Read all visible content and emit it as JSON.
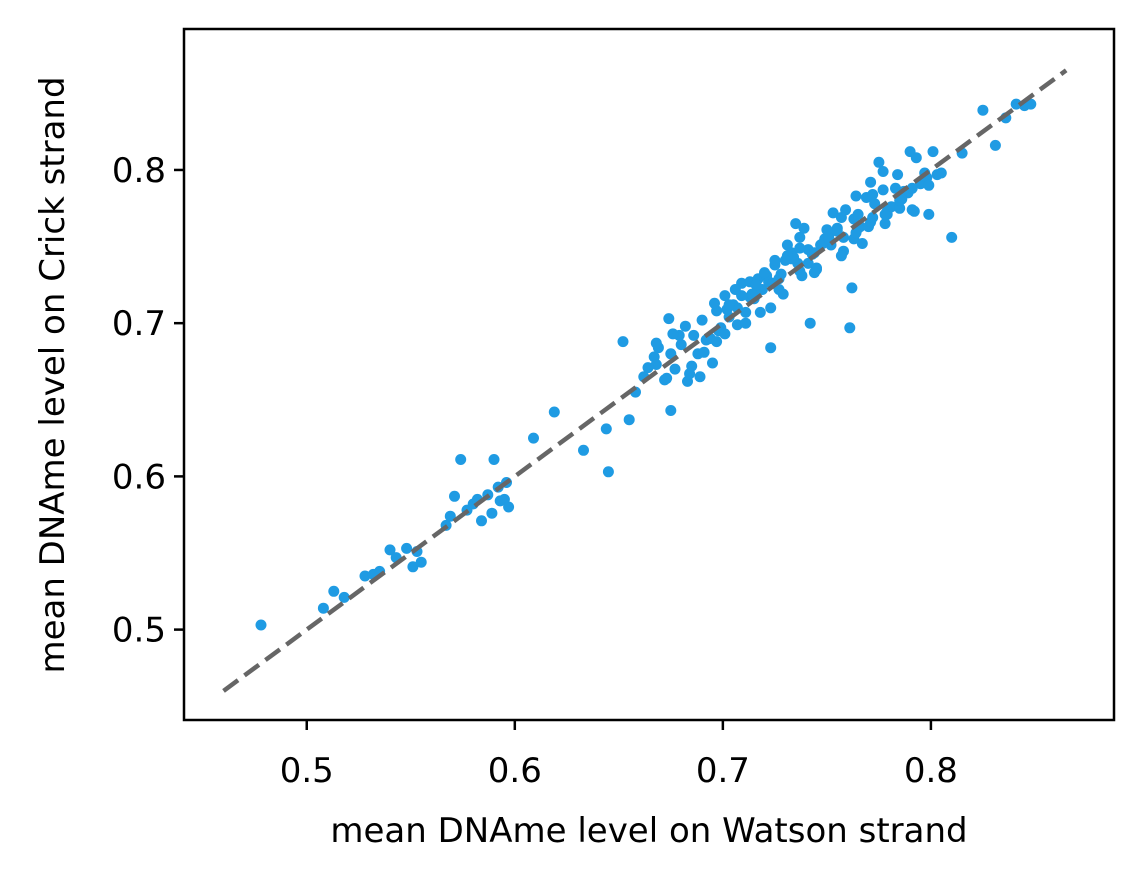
{
  "chart_data": {
    "type": "scatter",
    "title": "",
    "xlabel": "mean DNAme level on Watson strand",
    "ylabel": "mean DNAme level on Crick strand",
    "xlim": [
      0.441,
      0.888
    ],
    "ylim": [
      0.441,
      0.892
    ],
    "xticks": [
      0.5,
      0.6,
      0.7,
      0.8
    ],
    "yticks": [
      0.5,
      0.6,
      0.7,
      0.8
    ],
    "xtick_labels": [
      "0.5",
      "0.6",
      "0.7",
      "0.8"
    ],
    "ytick_labels": [
      "0.5",
      "0.6",
      "0.7",
      "0.8"
    ],
    "grid": false,
    "colors": {
      "points": "#1f9be3",
      "reference_line": "#666666"
    },
    "reference_line": {
      "style": "dashed",
      "x": [
        0.46,
        0.865
      ],
      "y": [
        0.46,
        0.865
      ]
    },
    "series": [
      {
        "x": [
          0.478,
          0.508,
          0.513,
          0.518,
          0.528,
          0.532,
          0.535,
          0.54,
          0.543,
          0.548,
          0.551,
          0.553,
          0.555,
          0.567,
          0.569,
          0.571,
          0.574,
          0.577,
          0.58,
          0.582,
          0.584,
          0.587,
          0.589,
          0.59,
          0.592,
          0.593,
          0.595,
          0.597,
          0.596,
          0.609,
          0.619,
          0.633,
          0.644,
          0.645,
          0.652,
          0.655,
          0.658,
          0.662,
          0.667,
          0.669,
          0.672,
          0.675,
          0.677,
          0.68,
          0.683,
          0.686,
          0.689,
          0.692,
          0.695,
          0.697,
          0.699,
          0.701,
          0.703,
          0.705,
          0.707,
          0.709,
          0.711,
          0.713,
          0.715,
          0.717,
          0.719,
          0.721,
          0.723,
          0.725,
          0.727,
          0.729,
          0.731,
          0.733,
          0.735,
          0.737,
          0.739,
          0.741,
          0.743,
          0.745,
          0.747,
          0.749,
          0.751,
          0.753,
          0.755,
          0.757,
          0.759,
          0.761,
          0.763,
          0.765,
          0.767,
          0.769,
          0.771,
          0.773,
          0.775,
          0.777,
          0.779,
          0.781,
          0.783,
          0.785,
          0.787,
          0.789,
          0.791,
          0.793,
          0.795,
          0.797,
          0.799,
          0.801,
          0.803,
          0.81,
          0.815,
          0.825,
          0.831,
          0.836,
          0.841,
          0.845,
          0.848,
          0.764,
          0.762,
          0.742,
          0.737,
          0.733,
          0.725,
          0.716,
          0.707,
          0.674,
          0.675,
          0.668,
          0.685,
          0.673,
          0.679,
          0.688,
          0.694,
          0.702,
          0.713,
          0.722,
          0.728,
          0.736,
          0.744,
          0.752,
          0.758,
          0.766,
          0.772,
          0.779,
          0.786,
          0.791,
          0.798,
          0.706,
          0.714,
          0.72,
          0.727,
          0.734,
          0.741,
          0.748,
          0.755,
          0.763,
          0.77,
          0.777,
          0.784,
          0.79,
          0.684,
          0.691,
          0.698,
          0.668,
          0.664,
          0.676,
          0.682,
          0.69,
          0.696,
          0.703,
          0.711,
          0.718,
          0.724,
          0.731,
          0.738,
          0.745,
          0.751,
          0.758,
          0.765,
          0.772,
          0.778,
          0.697,
          0.701,
          0.709,
          0.716,
          0.723,
          0.73,
          0.737,
          0.744,
          0.75,
          0.757,
          0.764,
          0.771,
          0.778,
          0.785,
          0.792,
          0.799,
          0.805
        ],
        "y": [
          0.503,
          0.514,
          0.525,
          0.521,
          0.535,
          0.536,
          0.538,
          0.552,
          0.547,
          0.553,
          0.541,
          0.551,
          0.544,
          0.568,
          0.574,
          0.587,
          0.611,
          0.578,
          0.582,
          0.585,
          0.571,
          0.588,
          0.576,
          0.611,
          0.593,
          0.584,
          0.585,
          0.58,
          0.596,
          0.625,
          0.642,
          0.617,
          0.631,
          0.603,
          0.688,
          0.637,
          0.655,
          0.665,
          0.678,
          0.684,
          0.663,
          0.643,
          0.67,
          0.686,
          0.662,
          0.692,
          0.665,
          0.689,
          0.674,
          0.708,
          0.697,
          0.718,
          0.704,
          0.712,
          0.699,
          0.726,
          0.707,
          0.727,
          0.716,
          0.729,
          0.722,
          0.731,
          0.684,
          0.738,
          0.722,
          0.719,
          0.751,
          0.742,
          0.765,
          0.756,
          0.762,
          0.748,
          0.745,
          0.736,
          0.751,
          0.755,
          0.758,
          0.772,
          0.762,
          0.769,
          0.774,
          0.697,
          0.768,
          0.771,
          0.752,
          0.782,
          0.792,
          0.778,
          0.805,
          0.799,
          0.771,
          0.776,
          0.788,
          0.775,
          0.786,
          0.785,
          0.774,
          0.808,
          0.791,
          0.798,
          0.771,
          0.812,
          0.797,
          0.756,
          0.811,
          0.839,
          0.816,
          0.834,
          0.843,
          0.842,
          0.843,
          0.783,
          0.723,
          0.7,
          0.734,
          0.746,
          0.741,
          0.72,
          0.71,
          0.703,
          0.68,
          0.673,
          0.672,
          0.664,
          0.692,
          0.68,
          0.69,
          0.709,
          0.717,
          0.727,
          0.732,
          0.739,
          0.746,
          0.751,
          0.756,
          0.763,
          0.769,
          0.773,
          0.781,
          0.788,
          0.795,
          0.722,
          0.719,
          0.733,
          0.729,
          0.743,
          0.739,
          0.752,
          0.76,
          0.755,
          0.763,
          0.787,
          0.797,
          0.812,
          0.667,
          0.681,
          0.695,
          0.687,
          0.671,
          0.693,
          0.698,
          0.702,
          0.713,
          0.712,
          0.7,
          0.707,
          0.726,
          0.744,
          0.731,
          0.735,
          0.755,
          0.747,
          0.762,
          0.784,
          0.765,
          0.688,
          0.693,
          0.718,
          0.725,
          0.71,
          0.741,
          0.749,
          0.733,
          0.761,
          0.744,
          0.759,
          0.766,
          0.771,
          0.78,
          0.773,
          0.79,
          0.798
        ]
      }
    ]
  }
}
